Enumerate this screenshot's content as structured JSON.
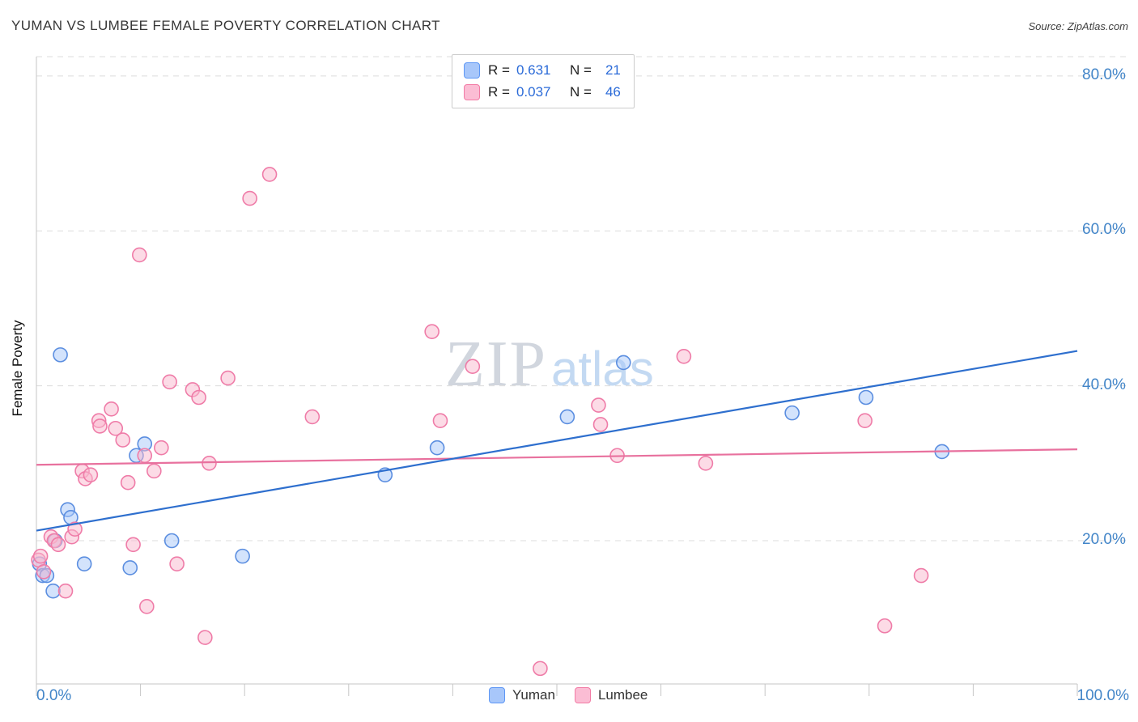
{
  "header": {
    "source": "Source: ZipAtlas.com"
  },
  "watermark": {
    "zip": "ZIP",
    "atlas": "atlas"
  },
  "legend_box": {
    "rows": [
      {
        "series": "Yuman",
        "r_label": "R =",
        "r_value": "0.631",
        "n_label": "N =",
        "n_value": "21"
      },
      {
        "series": "Lumbee",
        "r_label": "R =",
        "r_value": "0.037",
        "n_label": "N =",
        "n_value": "46"
      }
    ]
  },
  "chart_data": {
    "type": "scatter",
    "title": "YUMAN VS LUMBEE FEMALE POVERTY CORRELATION CHART",
    "xlabel": "",
    "ylabel": "Female Poverty",
    "xlim": [
      0,
      100
    ],
    "ylim": [
      1.5,
      82.5
    ],
    "grid": "horizontal-dashed",
    "legend_position": "bottom-center",
    "x_axis_labels": [
      "0.0%",
      "100.0%"
    ],
    "y_tick_labels": [
      "80.0%",
      "60.0%",
      "40.0%",
      "20.0%"
    ],
    "y_gridlines": [
      20,
      40,
      60,
      80
    ],
    "x_ticks": [
      0,
      10,
      20,
      30,
      40,
      50,
      60,
      70,
      80,
      90,
      100
    ],
    "series": [
      {
        "name": "Yuman",
        "R": 0.631,
        "N": 21,
        "fill_color": "#a8c7fa",
        "stroke_color": "#5b8ee0",
        "line_color": "#2e6fce",
        "points": [
          [
            0.3,
            17
          ],
          [
            0.6,
            15.5
          ],
          [
            1.0,
            15.5
          ],
          [
            1.6,
            13.5
          ],
          [
            1.8,
            20
          ],
          [
            2.3,
            44
          ],
          [
            3.0,
            24
          ],
          [
            3.3,
            23
          ],
          [
            4.6,
            17
          ],
          [
            9.0,
            16.5
          ],
          [
            9.6,
            31
          ],
          [
            10.4,
            32.5
          ],
          [
            13.0,
            20
          ],
          [
            19.8,
            18
          ],
          [
            33.5,
            28.5
          ],
          [
            38.5,
            32
          ],
          [
            51.0,
            36
          ],
          [
            56.4,
            43
          ],
          [
            72.6,
            36.5
          ],
          [
            79.7,
            38.5
          ],
          [
            87.0,
            31.5
          ]
        ],
        "trend": {
          "x1": 0,
          "y1": 21.3,
          "x2": 100,
          "y2": 44.5
        }
      },
      {
        "name": "Lumbee",
        "R": 0.037,
        "N": 46,
        "fill_color": "#f9b8ce",
        "stroke_color": "#ef7ca8",
        "line_color": "#e8719e",
        "points": [
          [
            0.2,
            17.5
          ],
          [
            0.4,
            18
          ],
          [
            0.7,
            16
          ],
          [
            1.4,
            20.5
          ],
          [
            1.7,
            20
          ],
          [
            2.1,
            19.5
          ],
          [
            2.8,
            13.5
          ],
          [
            3.4,
            20.5
          ],
          [
            3.7,
            21.5
          ],
          [
            4.4,
            29
          ],
          [
            4.7,
            28
          ],
          [
            5.2,
            28.5
          ],
          [
            6.0,
            35.5
          ],
          [
            6.1,
            34.8
          ],
          [
            7.2,
            37
          ],
          [
            7.6,
            34.5
          ],
          [
            8.3,
            33
          ],
          [
            8.8,
            27.5
          ],
          [
            9.3,
            19.5
          ],
          [
            9.9,
            56.9
          ],
          [
            10.4,
            31
          ],
          [
            10.6,
            11.5
          ],
          [
            11.3,
            29
          ],
          [
            12.0,
            32
          ],
          [
            12.8,
            40.5
          ],
          [
            13.5,
            17
          ],
          [
            15.0,
            39.5
          ],
          [
            15.6,
            38.5
          ],
          [
            16.2,
            7.5
          ],
          [
            16.6,
            30
          ],
          [
            18.4,
            41
          ],
          [
            20.5,
            64.2
          ],
          [
            22.4,
            67.3
          ],
          [
            26.5,
            36
          ],
          [
            38.0,
            47
          ],
          [
            38.8,
            35.5
          ],
          [
            41.9,
            42.5
          ],
          [
            48.4,
            3.5
          ],
          [
            54.0,
            37.5
          ],
          [
            54.2,
            35
          ],
          [
            55.8,
            31
          ],
          [
            62.2,
            43.8
          ],
          [
            64.3,
            30
          ],
          [
            79.6,
            35.5
          ],
          [
            81.5,
            9
          ],
          [
            85.0,
            15.5
          ]
        ],
        "trend": {
          "x1": 0,
          "y1": 29.8,
          "x2": 100,
          "y2": 31.8
        }
      }
    ]
  }
}
